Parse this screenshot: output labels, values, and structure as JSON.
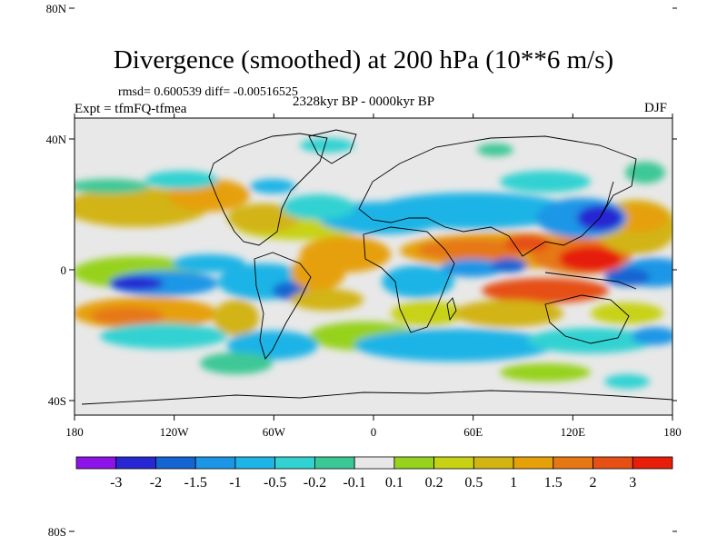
{
  "title": "Divergence (smoothed) at 200 hPa (10**6 m/s)",
  "stats": "rmsd= 0.600539 diff= -0.00516525",
  "experiment": "Expt = tfmFQ-tfmea",
  "period": "2328kyr BP - 0000kyr BP",
  "season": "DJF",
  "axes": {
    "x_ticks": [
      {
        "value": -180,
        "label": "180"
      },
      {
        "value": -120,
        "label": "120W"
      },
      {
        "value": -60,
        "label": "60W"
      },
      {
        "value": 0,
        "label": "0"
      },
      {
        "value": 60,
        "label": "60E"
      },
      {
        "value": 120,
        "label": "120E"
      },
      {
        "value": 180,
        "label": "180"
      }
    ],
    "y_ticks": [
      {
        "value": 80,
        "label": "80N"
      },
      {
        "value": 40,
        "label": "40N"
      },
      {
        "value": 0,
        "label": "0"
      },
      {
        "value": -40,
        "label": "40S"
      },
      {
        "value": -80,
        "label": "80S"
      }
    ]
  },
  "colorbar": {
    "colors": [
      "#8c14e6",
      "#2828d2",
      "#1464d2",
      "#1e96e6",
      "#1eb4e6",
      "#32d2d2",
      "#3cc896",
      "#e8e8e8",
      "#96d21e",
      "#c8d214",
      "#d2b414",
      "#e6a00a",
      "#e67814",
      "#e65014",
      "#e61e0a"
    ],
    "labels": [
      "-3",
      "-2",
      "-1.5",
      "-1",
      "-0.5",
      "-0.2",
      "-0.1",
      "0.1",
      "0.2",
      "0.5",
      "1",
      "1.5",
      "2",
      "3"
    ]
  }
}
